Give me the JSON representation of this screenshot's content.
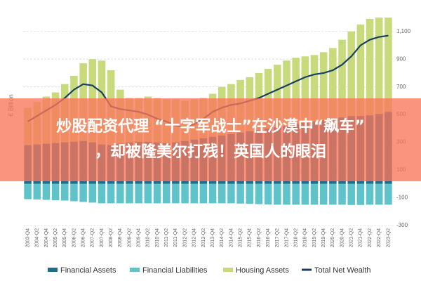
{
  "chart_data": {
    "type": "bar",
    "stacked": true,
    "y_label": "€ Billion",
    "categories": [
      "2003-Q4",
      "2004-Q2",
      "2004-Q4",
      "2005-Q2",
      "2005-Q4",
      "2006-Q2",
      "2006-Q4",
      "2007-Q2",
      "2007-Q4",
      "2008-Q2",
      "2008-Q4",
      "2009-Q2",
      "2009-Q4",
      "2010-Q2",
      "2010-Q4",
      "2011-Q2",
      "2011-Q4",
      "2012-Q2",
      "2012-Q4",
      "2013-Q2",
      "2013-Q4",
      "2014-Q2",
      "2014-Q4",
      "2015-Q2",
      "2015-Q4",
      "2016-Q2",
      "2016-Q4",
      "2017-Q2",
      "2017-Q4",
      "2018-Q2",
      "2018-Q4",
      "2019-Q2",
      "2019-Q4",
      "2020-Q2",
      "2020-Q4",
      "2021-Q2",
      "2021-Q4",
      "2022-Q2",
      "2022-Q4",
      "2023-Q2"
    ],
    "series": [
      {
        "name": "Financial Assets",
        "type": "bar",
        "color": "#1d6f88",
        "values": [
          280,
          285,
          290,
          295,
          300,
          305,
          310,
          300,
          285,
          280,
          290,
          300,
          305,
          305,
          300,
          295,
          300,
          310,
          320,
          330,
          340,
          350,
          360,
          370,
          380,
          390,
          400,
          410,
          420,
          430,
          440,
          450,
          460,
          470,
          480,
          490,
          490,
          495,
          505,
          520
        ]
      },
      {
        "name": "Financial Liabilities",
        "type": "bar",
        "color": "#5fc4c9",
        "values": [
          -110,
          -112,
          -115,
          -118,
          -120,
          -125,
          -130,
          -135,
          -140,
          -140,
          -140,
          -140,
          -140,
          -140,
          -140,
          -140,
          -140,
          -140,
          -140,
          -140,
          -140,
          -140,
          -140,
          -142,
          -144,
          -146,
          -148,
          -150,
          -150,
          -150,
          -150,
          -150,
          -150,
          -150,
          -150,
          -152,
          -152,
          -150,
          -150,
          -150
        ]
      },
      {
        "name": "Housing Assets",
        "type": "bar",
        "color": "#c7da7c",
        "values": [
          270,
          305,
          340,
          365,
          420,
          475,
          560,
          600,
          605,
          540,
          390,
          320,
          315,
          325,
          320,
          315,
          310,
          290,
          290,
          290,
          310,
          350,
          360,
          380,
          390,
          410,
          430,
          450,
          470,
          480,
          480,
          480,
          490,
          510,
          560,
          610,
          660,
          695,
          695,
          680
        ]
      },
      {
        "name": "Total Net Wealth",
        "type": "line",
        "color": "#1b3f5e",
        "values": [
          450,
          490,
          530,
          570,
          620,
          680,
          720,
          710,
          660,
          560,
          540,
          530,
          520,
          500,
          470,
          450,
          420,
          410,
          430,
          470,
          520,
          550,
          570,
          580,
          600,
          620,
          650,
          680,
          710,
          740,
          770,
          790,
          800,
          820,
          860,
          920,
          1000,
          1040,
          1060,
          1070
        ]
      }
    ],
    "ylim": [
      -300,
      1200
    ],
    "yticks": [
      -300,
      -100,
      100,
      300,
      500,
      700,
      900,
      {
        "value": 1100,
        "label": "1,100"
      }
    ],
    "grid": true
  },
  "overlay": {
    "lines": [
      "炒股配资代理 “十字军战士”在沙漠中“飙车”",
      "，却被隆美尔打残！英国人的眼泪"
    ]
  }
}
